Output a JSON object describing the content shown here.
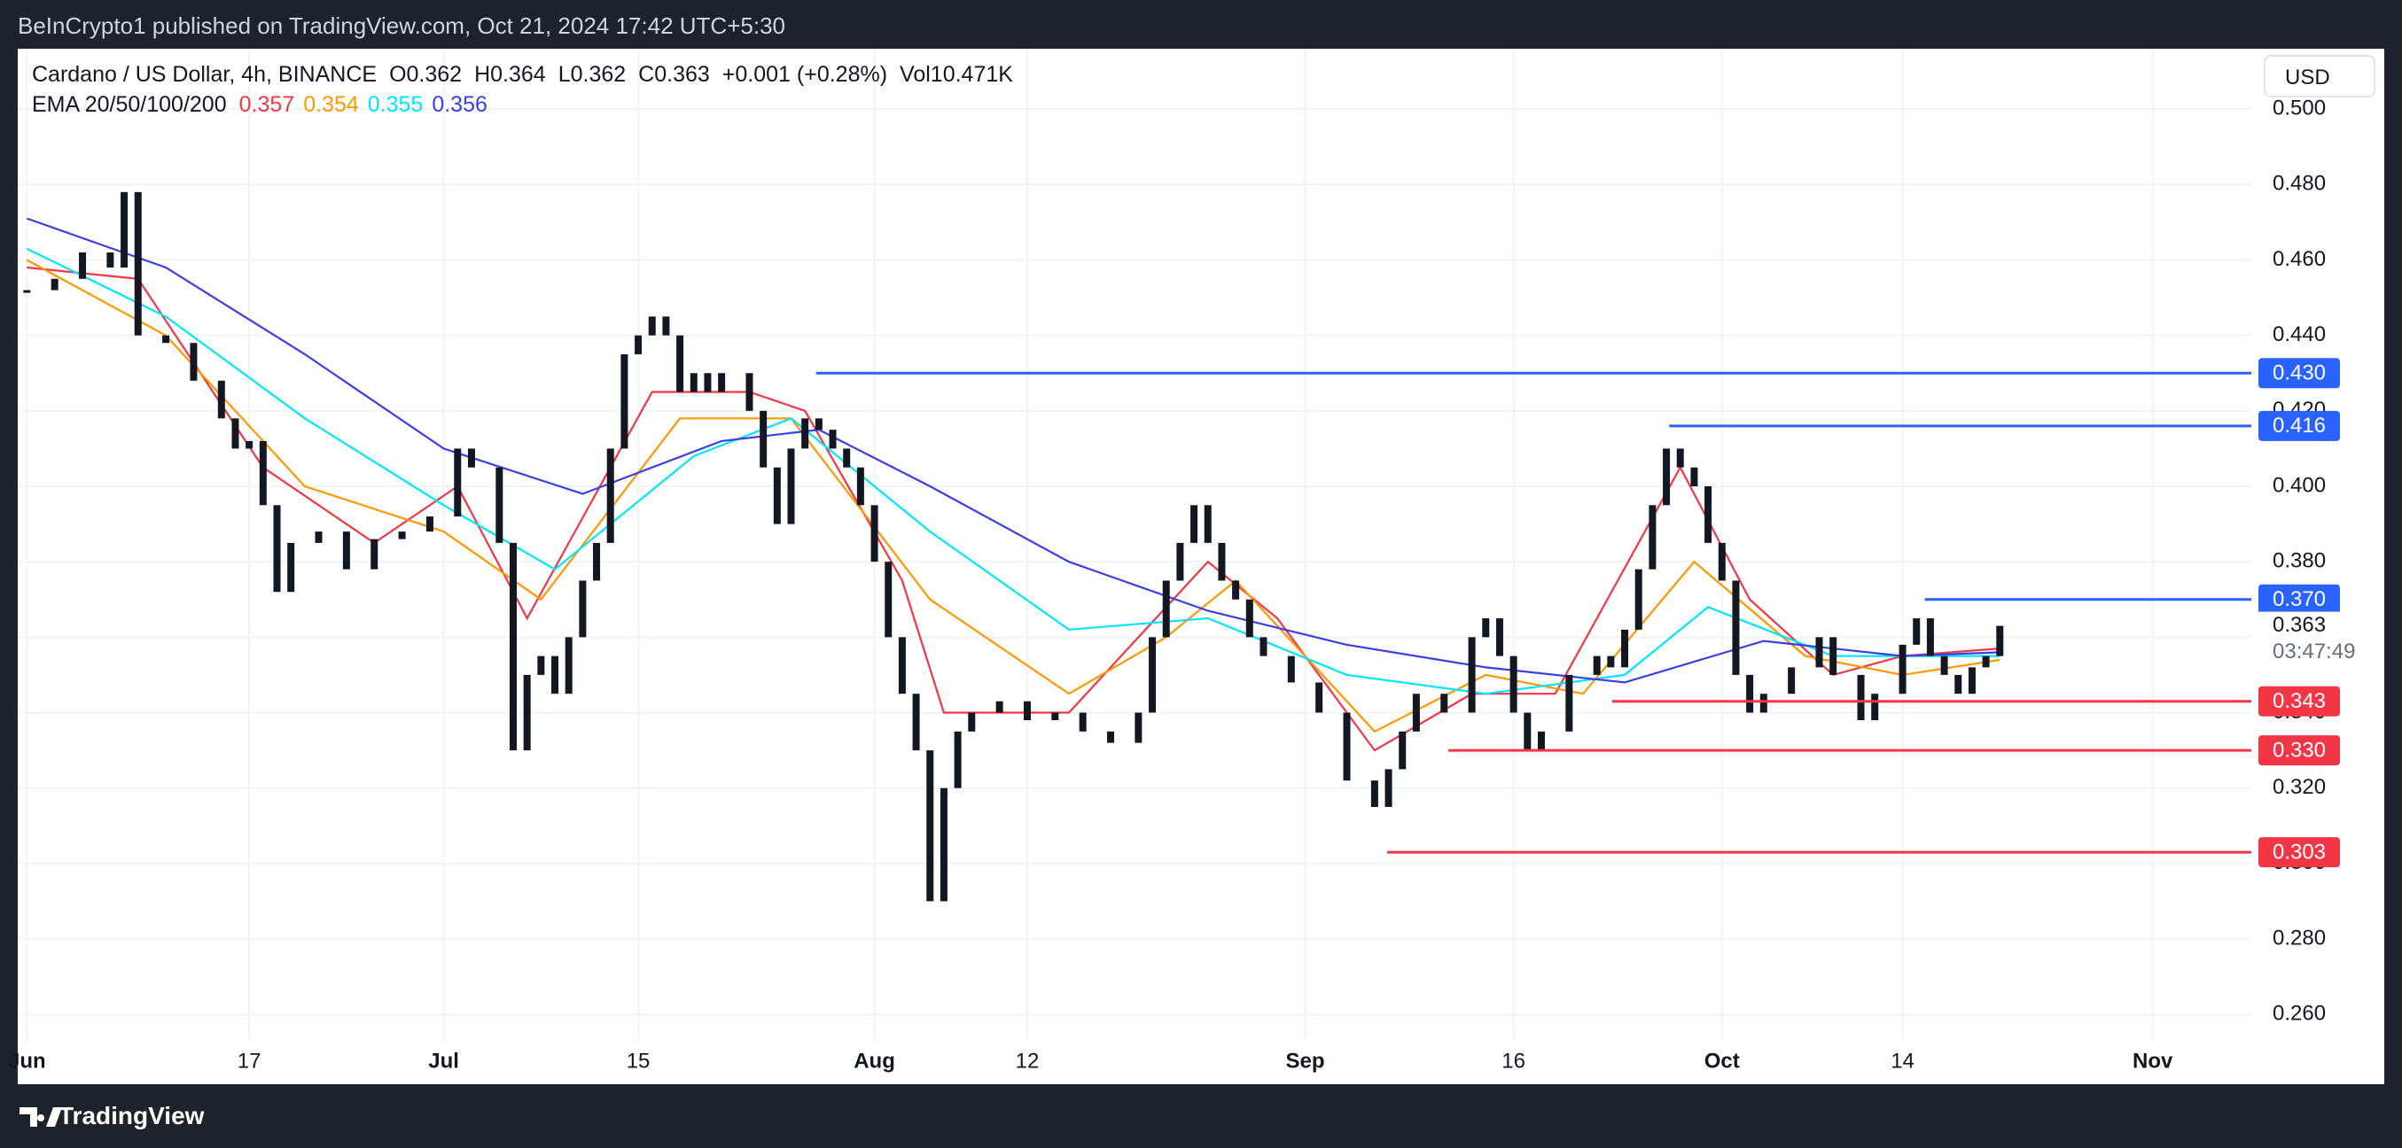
{
  "header": {
    "publisher": "BeInCrypto1 published on TradingView.com, Oct 21, 2024 17:42 UTC+5:30",
    "currency_button": "USD",
    "footer_brand": "TradingView"
  },
  "chart_data": {
    "type": "candlestick",
    "title": "Cardano / US Dollar, 4h, BINANCE",
    "ohlc": [
      "O0.362",
      "H0.364",
      "L0.362",
      "C0.363",
      "+0.001 (+0.28%)",
      "Vol10.471K"
    ],
    "indicator": "EMA 20/50/100/200",
    "color": "#131722",
    "x": [
      0,
      2,
      4,
      6,
      7,
      8,
      10,
      12,
      14,
      15,
      16,
      17,
      18,
      19,
      21,
      23,
      25,
      27,
      29,
      31,
      32,
      34,
      35,
      36,
      37,
      38,
      39,
      40,
      41,
      42,
      43,
      44,
      45,
      46,
      47,
      48,
      49,
      50,
      52,
      53,
      54,
      55,
      56,
      57,
      58,
      59,
      60,
      61,
      62,
      63,
      64,
      65,
      66,
      67,
      68,
      70,
      72,
      74,
      76,
      78,
      80,
      81,
      82,
      83,
      84,
      85,
      86,
      87,
      88,
      89,
      91,
      93,
      95,
      97,
      98,
      99,
      100,
      102,
      104,
      105,
      106,
      107,
      108,
      109,
      111,
      113,
      114,
      115,
      116,
      117,
      118,
      119,
      120,
      121,
      122,
      123,
      124,
      125,
      127,
      129,
      130,
      132,
      133,
      135,
      136,
      137,
      138,
      139,
      140,
      141,
      142
    ],
    "values": [
      0.452,
      0.455,
      0.462,
      0.458,
      0.478,
      0.44,
      0.438,
      0.428,
      0.418,
      0.41,
      0.412,
      0.395,
      0.372,
      0.385,
      0.388,
      0.378,
      0.386,
      0.388,
      0.392,
      0.41,
      0.405,
      0.385,
      0.33,
      0.35,
      0.355,
      0.345,
      0.36,
      0.375,
      0.385,
      0.41,
      0.435,
      0.44,
      0.445,
      0.44,
      0.425,
      0.43,
      0.425,
      0.43,
      0.42,
      0.405,
      0.39,
      0.41,
      0.418,
      0.415,
      0.41,
      0.405,
      0.395,
      0.38,
      0.36,
      0.345,
      0.33,
      0.29,
      0.32,
      0.335,
      0.34,
      0.343,
      0.338,
      0.34,
      0.335,
      0.332,
      0.34,
      0.36,
      0.375,
      0.385,
      0.395,
      0.385,
      0.375,
      0.37,
      0.36,
      0.355,
      0.348,
      0.34,
      0.322,
      0.315,
      0.325,
      0.335,
      0.345,
      0.34,
      0.36,
      0.365,
      0.355,
      0.34,
      0.33,
      0.335,
      0.35,
      0.355,
      0.352,
      0.362,
      0.378,
      0.395,
      0.41,
      0.405,
      0.4,
      0.385,
      0.375,
      0.35,
      0.34,
      0.345,
      0.352,
      0.36,
      0.35,
      0.338,
      0.345,
      0.358,
      0.365,
      0.355,
      0.35,
      0.345,
      0.352,
      0.355,
      0.363
    ],
    "series": [
      {
        "name": "EMA 20",
        "color": "#f23645",
        "legend_value": 0.357,
        "x": [
          0,
          8,
          17,
          25,
          31,
          36,
          45,
          52,
          56,
          63,
          66,
          75,
          85,
          90,
          97,
          104,
          110,
          119,
          124,
          130,
          135,
          142
        ],
        "values": [
          0.458,
          0.455,
          0.405,
          0.385,
          0.4,
          0.365,
          0.425,
          0.425,
          0.42,
          0.375,
          0.34,
          0.34,
          0.38,
          0.365,
          0.33,
          0.345,
          0.345,
          0.405,
          0.37,
          0.35,
          0.355,
          0.357
        ]
      },
      {
        "name": "EMA 50",
        "color": "#ff9800",
        "legend_value": 0.354,
        "x": [
          0,
          10,
          20,
          30,
          37,
          47,
          55,
          65,
          75,
          82,
          87,
          97,
          105,
          112,
          120,
          128,
          135,
          142
        ],
        "values": [
          0.46,
          0.44,
          0.4,
          0.388,
          0.37,
          0.418,
          0.418,
          0.37,
          0.345,
          0.36,
          0.375,
          0.335,
          0.35,
          0.345,
          0.38,
          0.355,
          0.35,
          0.354
        ]
      },
      {
        "name": "EMA 100",
        "color": "#00e5ff",
        "legend_value": 0.355,
        "x": [
          0,
          10,
          20,
          30,
          38,
          48,
          55,
          65,
          75,
          85,
          95,
          105,
          115,
          121,
          130,
          142
        ],
        "values": [
          0.463,
          0.445,
          0.418,
          0.395,
          0.378,
          0.408,
          0.418,
          0.388,
          0.362,
          0.365,
          0.35,
          0.345,
          0.35,
          0.368,
          0.355,
          0.355
        ]
      },
      {
        "name": "EMA 200",
        "color": "#3b3ee6",
        "legend_value": 0.356,
        "x": [
          0,
          10,
          20,
          30,
          40,
          50,
          57,
          65,
          75,
          85,
          95,
          105,
          115,
          125,
          135,
          142
        ],
        "values": [
          0.471,
          0.458,
          0.435,
          0.41,
          0.398,
          0.412,
          0.415,
          0.4,
          0.38,
          0.367,
          0.358,
          0.352,
          0.348,
          0.359,
          0.355,
          0.356
        ]
      }
    ],
    "xlim": [
      -0.66,
      160.1
    ],
    "xticks": [
      {
        "value": 0,
        "label": "Jun"
      },
      {
        "value": 16,
        "label": "17"
      },
      {
        "value": 30,
        "label": "Jul"
      },
      {
        "value": 44,
        "label": "15"
      },
      {
        "value": 61,
        "label": "Aug"
      },
      {
        "value": 72,
        "label": "12"
      },
      {
        "value": 92,
        "label": "Sep"
      },
      {
        "value": 107,
        "label": "16"
      },
      {
        "value": 122,
        "label": "Oct"
      },
      {
        "value": 135,
        "label": "14"
      },
      {
        "value": 153,
        "label": "Nov"
      }
    ],
    "ylim": [
      0.253,
      0.516
    ],
    "yticks": [
      {
        "value": 0.26,
        "label": "0.260"
      },
      {
        "value": 0.28,
        "label": "0.280"
      },
      {
        "value": 0.3,
        "label": "0.300"
      },
      {
        "value": 0.32,
        "label": "0.320"
      },
      {
        "value": 0.34,
        "label": "0.340"
      },
      {
        "value": 0.36,
        "label": "0.360"
      },
      {
        "value": 0.38,
        "label": "0.380"
      },
      {
        "value": 0.4,
        "label": "0.400"
      },
      {
        "value": 0.42,
        "label": "0.420"
      },
      {
        "value": 0.44,
        "label": "0.440"
      },
      {
        "value": 0.46,
        "label": "0.460"
      },
      {
        "value": 0.48,
        "label": "0.480"
      },
      {
        "value": 0.5,
        "label": "0.500"
      }
    ],
    "grid": true,
    "levels": [
      {
        "value": 0.43,
        "label": "0.430",
        "start": 56.8,
        "color": "#2962ff"
      },
      {
        "value": 0.416,
        "label": "0.416",
        "start": 118.2,
        "color": "#2962ff"
      },
      {
        "value": 0.37,
        "label": "0.370",
        "start": 136.6,
        "color": "#2962ff"
      },
      {
        "value": 0.343,
        "label": "0.343",
        "start": 114.1,
        "color": "#f23645"
      },
      {
        "value": 0.33,
        "label": "0.330",
        "start": 102.3,
        "color": "#f23645"
      },
      {
        "value": 0.303,
        "label": "0.303",
        "start": 97.9,
        "color": "#f23645"
      }
    ],
    "last_price": 0.363,
    "countdown": "03:47:49"
  }
}
